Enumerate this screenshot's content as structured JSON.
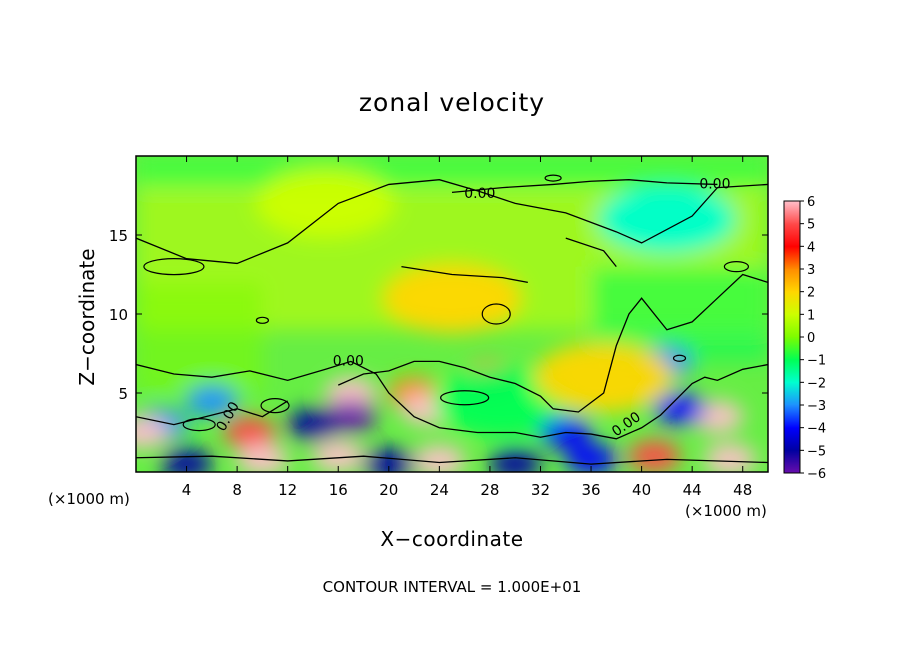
{
  "chart_data": {
    "type": "heatmap",
    "title": "zonal velocity",
    "xlabel": "X−coordinate",
    "ylabel": "Z−coordinate",
    "x_unit_left": "(×1000 m)",
    "x_unit_right": "(×1000 m)",
    "footnote": "CONTOUR INTERVAL = 1.000E+01",
    "xlim": [
      0,
      50
    ],
    "ylim": [
      0,
      20
    ],
    "x_ticks": [
      4,
      8,
      12,
      16,
      20,
      24,
      28,
      32,
      36,
      40,
      44,
      48
    ],
    "y_ticks": [
      5,
      10,
      15
    ],
    "contour_label": "0.00",
    "colorbar": {
      "ticks": [
        6,
        5,
        4,
        3,
        2,
        1,
        0,
        -1,
        -2,
        -3,
        -4,
        -5,
        -6
      ],
      "tick_labels": [
        "6",
        "5",
        "4",
        "3",
        "2",
        "1",
        "0",
        "−1",
        "−2",
        "−3",
        "−4",
        "−5",
        "−6"
      ],
      "colors": [
        "#ffc0cb",
        "#ff4a4a",
        "#ff0000",
        "#ff8c00",
        "#ffd700",
        "#ccff00",
        "#7cfc00",
        "#00ff55",
        "#00ffd0",
        "#1e90ff",
        "#0000ff",
        "#0000a0",
        "#6a0dad"
      ]
    },
    "grid": false,
    "field_features": [
      {
        "x": 15,
        "z": 17,
        "value": 1
      },
      {
        "x": 25,
        "z": 11,
        "value": 1.5
      },
      {
        "x": 42,
        "z": 16,
        "value": -2
      },
      {
        "x": 22,
        "z": 5,
        "value": 3
      },
      {
        "x": 23,
        "z": 4,
        "value": 6
      },
      {
        "x": 17,
        "z": 5,
        "value": 5.5
      },
      {
        "x": 17,
        "z": 3.5,
        "value": -6
      },
      {
        "x": 14,
        "z": 3,
        "value": -5
      },
      {
        "x": 9,
        "z": 2.5,
        "value": 5
      },
      {
        "x": 6,
        "z": 4.5,
        "value": -3
      },
      {
        "x": 2,
        "z": 3,
        "value": -3
      },
      {
        "x": 0.5,
        "z": 2.5,
        "value": 6
      },
      {
        "x": 28,
        "z": 6,
        "value": 5
      },
      {
        "x": 29,
        "z": 4.5,
        "value": -1.5
      },
      {
        "x": 46,
        "z": 3.5,
        "value": 6
      },
      {
        "x": 43,
        "z": 4,
        "value": -4
      },
      {
        "x": 42,
        "z": 7,
        "value": -3
      },
      {
        "x": 37,
        "z": 6,
        "value": 2
      },
      {
        "x": 10,
        "z": 0.8,
        "value": 6
      },
      {
        "x": 16,
        "z": 1,
        "value": 6
      },
      {
        "x": 24,
        "z": 0.7,
        "value": 6
      },
      {
        "x": 41,
        "z": 1,
        "value": 5
      },
      {
        "x": 47,
        "z": 0.8,
        "value": 6
      },
      {
        "x": 4,
        "z": 0.5,
        "value": -5
      },
      {
        "x": 20,
        "z": 0.5,
        "value": -5
      },
      {
        "x": 30,
        "z": 0.5,
        "value": -5
      },
      {
        "x": 34,
        "z": 2.5,
        "value": -4
      },
      {
        "x": 36,
        "z": 0.8,
        "value": -4
      }
    ]
  }
}
